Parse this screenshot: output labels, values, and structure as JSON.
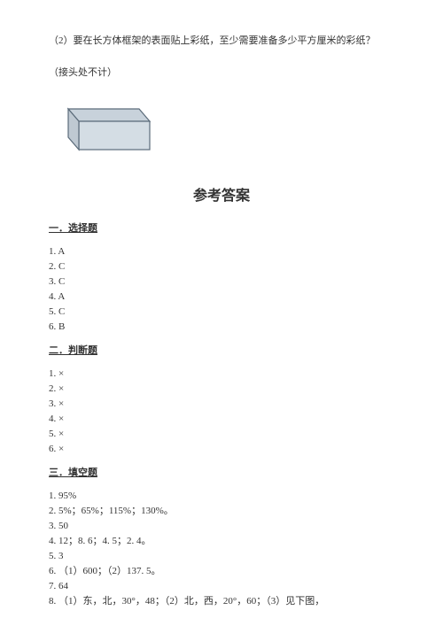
{
  "question": {
    "text": "（2）要在长方体框架的表面贴上彩纸，至少需要准备多少平方厘米的彩纸？",
    "note": "（接头处不计）"
  },
  "cuboid": {
    "stroke": "#5b6b7a",
    "fill": "#d4dde4",
    "fill_top": "#c8d2db",
    "fill_side": "#bfc9d2"
  },
  "title": "参考答案",
  "sections": [
    {
      "heading": "一．选择题",
      "items": [
        "1. A",
        "2. C",
        "3. C",
        "4. A",
        "5. C",
        "6. B"
      ]
    },
    {
      "heading": "二．判断题",
      "items": [
        "1. ×",
        "2. ×",
        "3. ×",
        "4. ×",
        "5. ×",
        "6. ×"
      ]
    },
    {
      "heading": "三．填空题",
      "items": [
        "1. 95%",
        "2. 5%；65%；115%；130%。",
        "3. 50",
        "4. 12；8. 6；4. 5；2. 4。",
        "5. 3",
        "6. （1）600；（2）137. 5。",
        "7. 64",
        "8. （1）东，北，30°，48；（2）北，西，20°，60；（3）见下图，"
      ]
    }
  ]
}
